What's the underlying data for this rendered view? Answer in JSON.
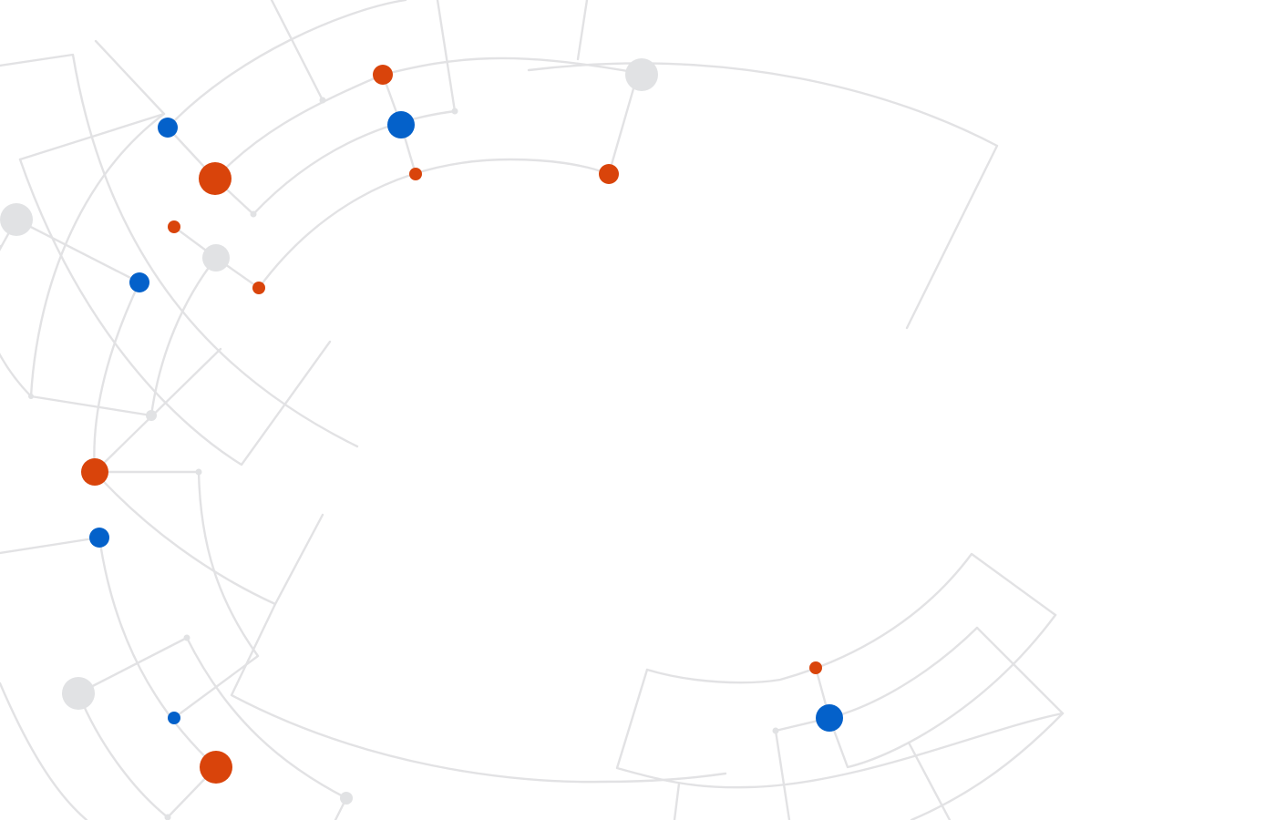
{
  "graphic": {
    "kind": "abstract-network-graphic",
    "background": "#ffffff",
    "colors": {
      "line": "#e2e2e4",
      "node_grey": "#e1e2e4",
      "node_orange": "#d9440b",
      "node_blue": "#0461ca"
    }
  }
}
